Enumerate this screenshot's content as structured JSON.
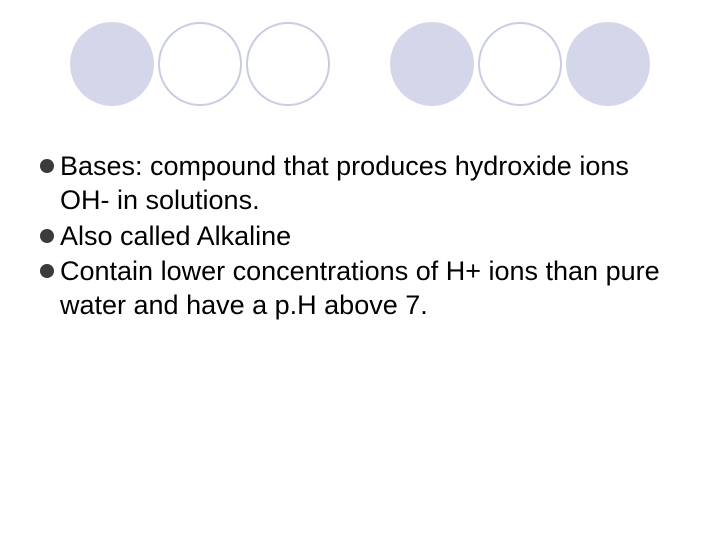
{
  "decorCircles": [
    {
      "fill": "#d4d7ea",
      "stroke": "none",
      "size": 84,
      "gapAfter": 4
    },
    {
      "fill": "none",
      "stroke": "#c9cde4",
      "size": 84,
      "gapAfter": 4
    },
    {
      "fill": "none",
      "stroke": "#c9cde4",
      "size": 84,
      "gapAfter": 60
    },
    {
      "fill": "#d4d7ea",
      "stroke": "none",
      "size": 84,
      "gapAfter": 4
    },
    {
      "fill": "none",
      "stroke": "#c9cde4",
      "size": 84,
      "gapAfter": 4
    },
    {
      "fill": "#d4d7ea",
      "stroke": "none",
      "size": 84,
      "gapAfter": 0
    }
  ],
  "circleStrokeWidth": 2,
  "bulletColor": "#3b3b3b",
  "bullets": [
    {
      "text": "Bases: compound that produces hydroxide ions OH- in solutions."
    },
    {
      "text": "Also called Alkaline"
    },
    {
      "text": "Contain lower concentrations of H+ ions than pure water and have a p.H above 7."
    }
  ],
  "textColor": "#000000",
  "fontSize": 27
}
